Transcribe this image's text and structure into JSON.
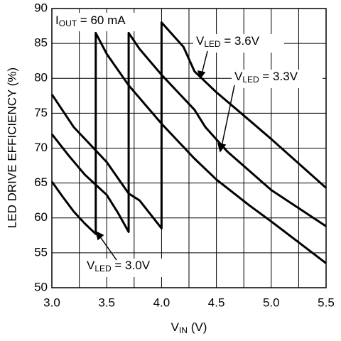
{
  "chart_data": {
    "type": "line",
    "y_label": "LED DRIVE EFFICIENCY (%)",
    "x_label": [
      "V",
      "IN",
      " (V)"
    ],
    "xlim": [
      3.0,
      5.5
    ],
    "ylim": [
      50,
      90
    ],
    "xticks": [
      {
        "value": 3,
        "label": "3.0"
      },
      {
        "value": 3.5,
        "label": "3.5"
      },
      {
        "value": 4,
        "label": "4.0"
      },
      {
        "value": 4.5,
        "label": "4.5"
      },
      {
        "value": 5,
        "label": "5.0"
      },
      {
        "value": 5.5,
        "label": "5.5"
      }
    ],
    "x_minor_ticks": [
      3.25,
      3.75,
      4.25,
      4.75,
      5.25
    ],
    "yticks": [
      50,
      55,
      60,
      65,
      70,
      75,
      80,
      85,
      90
    ],
    "grid": true,
    "color": "#000000",
    "series": [
      {
        "x": [
          3.0,
          3.1,
          3.2,
          3.3,
          3.4,
          3.4,
          3.5,
          3.7,
          4.0,
          4.3,
          4.5,
          4.8,
          5.0,
          5.5
        ],
        "values": [
          65.2,
          63.0,
          60.9,
          59.2,
          57.7,
          86.5,
          83.5,
          79.0,
          73.5,
          68.5,
          65.5,
          61.8,
          59.5,
          53.5
        ]
      },
      {
        "x": [
          3.0,
          3.15,
          3.3,
          3.5,
          3.6,
          3.7,
          3.7,
          3.8,
          4.0,
          4.3,
          4.4,
          4.6,
          5.0,
          5.5
        ],
        "values": [
          72.0,
          69.0,
          66.2,
          63.3,
          60.8,
          58.0,
          86.5,
          84.2,
          80.5,
          75.5,
          73.0,
          69.5,
          64.0,
          58.8
        ]
      },
      {
        "x": [
          3.0,
          3.2,
          3.5,
          3.7,
          3.8,
          4.0,
          4.0,
          4.2,
          4.3,
          4.5,
          4.8,
          5.0,
          5.5
        ],
        "values": [
          77.7,
          73.0,
          68.0,
          63.5,
          62.5,
          58.5,
          88.0,
          84.5,
          81.0,
          78.0,
          74.0,
          71.3,
          64.3
        ]
      }
    ],
    "annotations": [
      {
        "parts": [
          "I",
          "OUT",
          " = 60 mA"
        ]
      },
      {
        "parts": [
          "V",
          "LED",
          " = 3.6V"
        ]
      },
      {
        "parts": [
          "V",
          "LED",
          " = 3.3V"
        ]
      },
      {
        "parts": [
          "V",
          "LED",
          " = 3.0V"
        ]
      }
    ]
  }
}
